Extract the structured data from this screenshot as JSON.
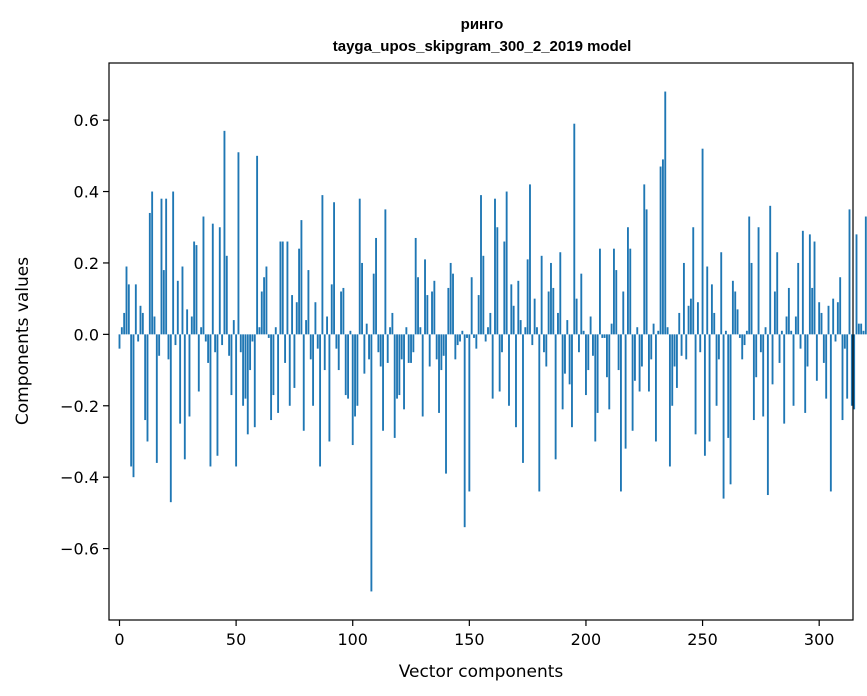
{
  "chart_data": {
    "type": "bar",
    "title": "ринго",
    "subtitle": "tayga_upos_skipgram_300_2_2019 model",
    "xlabel": "Vector components",
    "ylabel": "Components values",
    "xlim": [
      -4.5,
      314.5
    ],
    "ylim": [
      -0.8,
      0.76
    ],
    "xticks": [
      0,
      50,
      100,
      150,
      200,
      250,
      300
    ],
    "xtick_labels": [
      "0",
      "50",
      "100",
      "150",
      "200",
      "250",
      "300"
    ],
    "yticks": [
      -0.6,
      -0.4,
      -0.2,
      0.0,
      0.2,
      0.4,
      0.6
    ],
    "ytick_labels": [
      "−0.6",
      "−0.4",
      "−0.2",
      "0.0",
      "0.2",
      "0.4",
      "0.6"
    ],
    "grid": false,
    "bar_color": "#1f77b4",
    "values": [
      -0.04,
      0.02,
      0.06,
      0.19,
      0.14,
      -0.37,
      -0.4,
      0.14,
      -0.02,
      0.08,
      0.06,
      -0.24,
      -0.3,
      0.34,
      0.4,
      0.05,
      -0.36,
      -0.06,
      0.38,
      0.18,
      0.38,
      -0.07,
      -0.47,
      0.4,
      -0.03,
      0.15,
      -0.25,
      0.19,
      -0.35,
      0.07,
      -0.23,
      0.05,
      0.26,
      0.25,
      -0.16,
      0.02,
      0.33,
      -0.02,
      -0.08,
      -0.37,
      0.31,
      -0.05,
      -0.34,
      0.3,
      -0.03,
      0.57,
      0.22,
      -0.06,
      -0.17,
      0.04,
      -0.37,
      0.51,
      -0.05,
      -0.2,
      -0.18,
      -0.28,
      -0.1,
      -0.02,
      -0.26,
      0.5,
      0.02,
      0.12,
      0.16,
      0.19,
      -0.01,
      -0.24,
      -0.17,
      0.02,
      -0.22,
      0.26,
      0.26,
      -0.08,
      0.26,
      -0.2,
      0.11,
      -0.15,
      0.09,
      0.24,
      0.32,
      -0.27,
      0.04,
      0.18,
      -0.07,
      -0.2,
      0.09,
      -0.04,
      -0.37,
      0.39,
      -0.1,
      0.05,
      -0.3,
      0.14,
      0.37,
      -0.04,
      -0.1,
      0.12,
      0.13,
      -0.17,
      -0.18,
      0.01,
      -0.31,
      -0.23,
      -0.2,
      0.38,
      0.2,
      -0.11,
      0.03,
      -0.07,
      -0.72,
      0.17,
      0.27,
      -0.05,
      -0.09,
      -0.27,
      0.35,
      -0.08,
      0.02,
      0.06,
      -0.29,
      -0.18,
      -0.17,
      -0.07,
      -0.21,
      0.02,
      -0.08,
      -0.08,
      -0.05,
      0.27,
      0.16,
      0.02,
      -0.23,
      0.21,
      0.11,
      -0.09,
      0.12,
      0.15,
      -0.07,
      -0.22,
      -0.1,
      -0.06,
      -0.39,
      0.13,
      0.2,
      0.17,
      -0.07,
      -0.03,
      -0.02,
      0.01,
      -0.54,
      -0.01,
      -0.44,
      0.16,
      -0.01,
      -0.04,
      0.11,
      0.39,
      0.22,
      -0.02,
      0.02,
      0.06,
      -0.18,
      0.38,
      0.3,
      -0.16,
      -0.05,
      0.26,
      0.4,
      -0.2,
      0.14,
      0.08,
      -0.26,
      0.15,
      0.04,
      -0.36,
      0.02,
      0.21,
      0.42,
      -0.03,
      0.1,
      0.02,
      -0.44,
      0.22,
      -0.05,
      -0.09,
      0.12,
      0.2,
      0.13,
      -0.35,
      0.06,
      0.23,
      -0.21,
      -0.11,
      0.04,
      -0.14,
      -0.26,
      0.59,
      0.1,
      -0.05,
      0.17,
      0.01,
      -0.17,
      -0.1,
      0.05,
      -0.06,
      -0.3,
      -0.22,
      0.24,
      -0.01,
      -0.01,
      -0.12,
      -0.21,
      0.03,
      0.24,
      0.18,
      -0.1,
      -0.44,
      0.12,
      -0.32,
      0.3,
      0.24,
      -0.27,
      -0.13,
      0.02,
      -0.16,
      -0.09,
      0.42,
      0.35,
      -0.16,
      -0.07,
      0.03,
      -0.3,
      0.01,
      0.47,
      0.49,
      0.68,
      0.02,
      -0.37,
      -0.2,
      -0.09,
      -0.15,
      0.06,
      -0.06,
      0.2,
      -0.07,
      0.08,
      0.1,
      0.3,
      -0.28,
      0.09,
      -0.05,
      0.52,
      -0.34,
      0.19,
      -0.3,
      0.14,
      0.06,
      -0.2,
      -0.07,
      0.23,
      -0.46,
      0.01,
      -0.29,
      -0.42,
      0.15,
      0.12,
      0.07,
      -0.01,
      -0.07,
      -0.03,
      0.01,
      0.33,
      0.2,
      -0.24,
      -0.12,
      0.3,
      -0.05,
      -0.23,
      0.02,
      -0.45,
      0.36,
      -0.14,
      0.12,
      0.23,
      -0.08,
      0.01,
      -0.25,
      0.05,
      0.13,
      0.01,
      -0.2,
      0.05,
      0.2,
      -0.04,
      0.29,
      -0.22,
      -0.09,
      0.28,
      0.13,
      0.26,
      -0.13,
      0.09,
      0.06,
      -0.08,
      -0.18,
      0.08,
      -0.44,
      0.1,
      -0.02,
      0.09,
      0.16,
      -0.24,
      -0.04,
      -0.18,
      0.35,
      -0.2,
      -0.21,
      0.28,
      0.03,
      0.03,
      0.01,
      0.33,
      -0.26
    ]
  }
}
